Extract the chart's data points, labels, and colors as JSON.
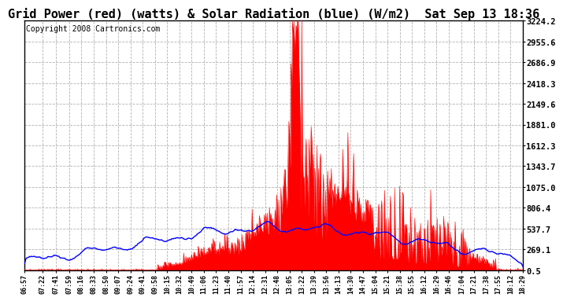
{
  "title": "Grid Power (red) (watts) & Solar Radiation (blue) (W/m2)  Sat Sep 13 18:36",
  "copyright": "Copyright 2008 Cartronics.com",
  "yticks": [
    0.5,
    269.1,
    537.7,
    806.4,
    1075.0,
    1343.7,
    1612.3,
    1881.0,
    2149.6,
    2418.3,
    2686.9,
    2955.6,
    3224.2
  ],
  "ymin": 0.0,
  "ymax": 3224.2,
  "bg_color": "#ffffff",
  "plot_bg": "#ffffff",
  "grid_color": "#aaaaaa",
  "red_color": "#ff0000",
  "blue_color": "#0000ff",
  "title_fontsize": 11,
  "copyright_fontsize": 7,
  "xtick_fontsize": 6,
  "ytick_fontsize": 7.5,
  "xtick_labels": [
    "06:57",
    "07:22",
    "07:41",
    "07:59",
    "08:16",
    "08:33",
    "08:50",
    "09:07",
    "09:24",
    "09:41",
    "09:58",
    "10:15",
    "10:32",
    "10:49",
    "11:06",
    "11:23",
    "11:40",
    "11:57",
    "12:14",
    "12:31",
    "12:48",
    "13:05",
    "13:22",
    "13:39",
    "13:56",
    "14:13",
    "14:30",
    "14:47",
    "15:04",
    "15:21",
    "15:38",
    "15:55",
    "16:12",
    "16:29",
    "16:46",
    "17:04",
    "17:21",
    "17:38",
    "17:55",
    "18:12",
    "18:29"
  ]
}
